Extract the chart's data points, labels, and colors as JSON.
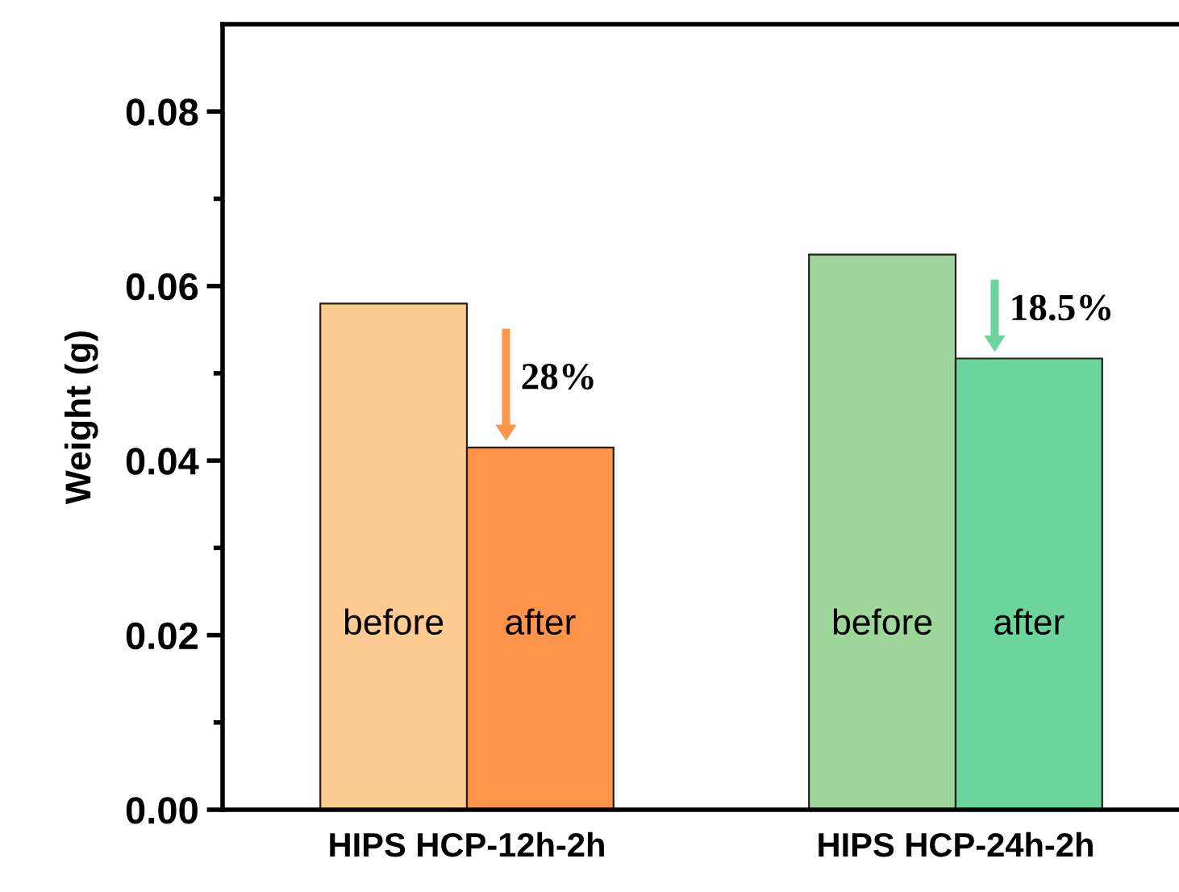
{
  "chart_data": {
    "type": "bar",
    "ylabel": "Weight (g)",
    "categories": [
      "HIPS HCP-12h-2h",
      "HIPS HCP-24h-2h"
    ],
    "series": [
      {
        "name": "before",
        "colors": [
          "#fdcb92",
          "#9dd59b"
        ],
        "values": [
          0.058,
          0.0636
        ]
      },
      {
        "name": "after",
        "colors": [
          "#fe934a",
          "#6bd59c"
        ],
        "values": [
          0.0415,
          0.0517
        ]
      }
    ],
    "annotations": [
      "28%",
      "18.5%"
    ],
    "ylim": [
      0,
      0.09
    ],
    "yticks": [
      {
        "value": 0,
        "label": "0.00"
      },
      {
        "value": 0.02,
        "label": "0.02"
      },
      {
        "value": 0.04,
        "label": "0.04"
      },
      {
        "value": 0.06,
        "label": "0.06"
      },
      {
        "value": 0.08,
        "label": "0.08"
      },
      {
        "value": 0.01,
        "label": null
      },
      {
        "value": 0.03,
        "label": null
      },
      {
        "value": 0.05,
        "label": null
      },
      {
        "value": 0.07,
        "label": null
      }
    ],
    "grid": false,
    "legend": false
  }
}
